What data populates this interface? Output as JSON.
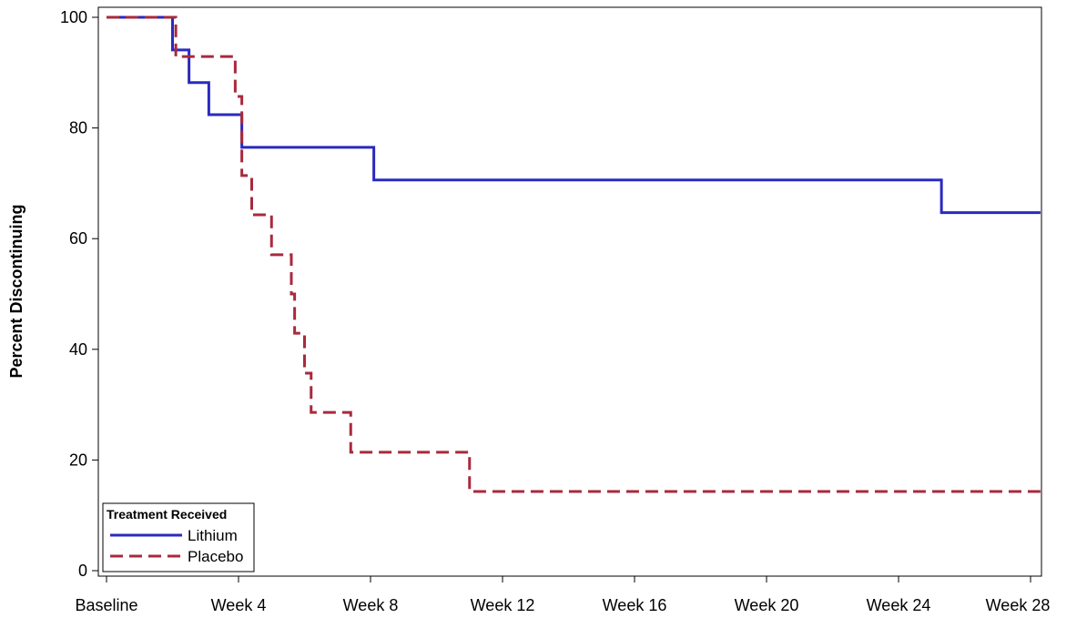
{
  "chart_data": {
    "type": "line",
    "step": true,
    "ylabel": "Percent Discontinuing",
    "xlabel": "",
    "x_ticks": [
      {
        "week": 0,
        "label": "Baseline"
      },
      {
        "week": 4,
        "label": "Week 4"
      },
      {
        "week": 8,
        "label": "Week 8"
      },
      {
        "week": 12,
        "label": "Week 12"
      },
      {
        "week": 16,
        "label": "Week 16"
      },
      {
        "week": 20,
        "label": "Week 20"
      },
      {
        "week": 24,
        "label": "Week 24"
      },
      {
        "week": 28,
        "label": "Week 28"
      }
    ],
    "xlim": [
      0,
      28.3
    ],
    "ylim": [
      0,
      100
    ],
    "y_ticks": [
      0,
      20,
      40,
      60,
      80,
      100
    ],
    "grid": false,
    "legend": {
      "title": "Treatment Received",
      "placement": "bottom-left"
    },
    "series": [
      {
        "name": "Lithium",
        "color": "#2a2ac0",
        "dash": "solid",
        "points": [
          [
            0,
            100
          ],
          [
            2.0,
            94.1
          ],
          [
            2.5,
            88.2
          ],
          [
            3.1,
            82.4
          ],
          [
            4.1,
            76.5
          ],
          [
            8.1,
            70.6
          ],
          [
            25.3,
            64.7
          ],
          [
            28.3,
            64.7
          ]
        ]
      },
      {
        "name": "Placebo",
        "color": "#a82a3c",
        "dash": "dashed",
        "points": [
          [
            0,
            100
          ],
          [
            2.1,
            92.9
          ],
          [
            3.9,
            85.7
          ],
          [
            4.1,
            71.4
          ],
          [
            4.4,
            64.3
          ],
          [
            5.0,
            57.1
          ],
          [
            5.6,
            50.0
          ],
          [
            5.7,
            42.9
          ],
          [
            6.0,
            35.7
          ],
          [
            6.2,
            28.6
          ],
          [
            7.4,
            21.4
          ],
          [
            11.0,
            14.3
          ],
          [
            28.3,
            14.3
          ]
        ]
      }
    ]
  }
}
